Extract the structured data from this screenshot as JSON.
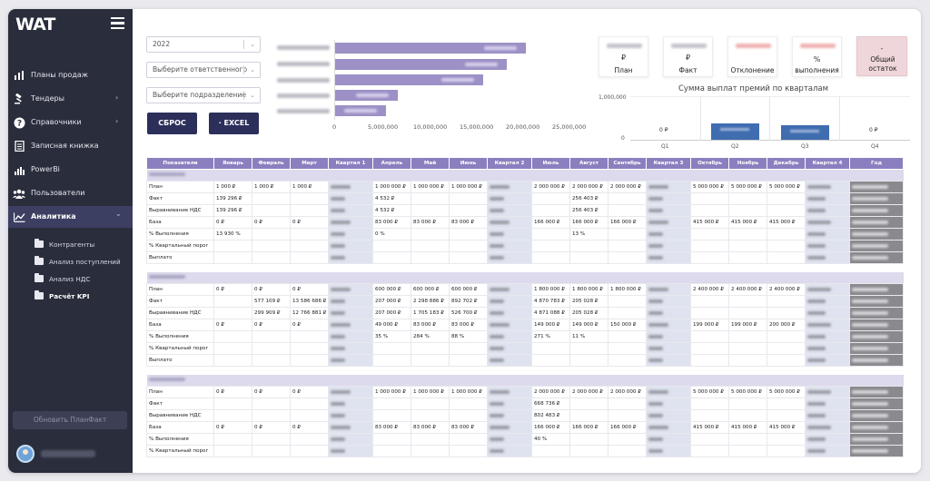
{
  "app": {
    "logo": "WAT"
  },
  "sidebar": {
    "items": [
      {
        "label": "Планы продаж",
        "icon": "chart-bars-icon",
        "chevron": ""
      },
      {
        "label": "Тендеры",
        "icon": "gavel-icon",
        "chevron": "›"
      },
      {
        "label": "Справочники",
        "icon": "help-circle-icon",
        "chevron": "›"
      },
      {
        "label": "Записная книжка",
        "icon": "notebook-icon",
        "chevron": ""
      },
      {
        "label": "PowerBi",
        "icon": "bar-chart-icon",
        "chevron": ""
      },
      {
        "label": "Пользователи",
        "icon": "users-icon",
        "chevron": ""
      },
      {
        "label": "Аналитика",
        "icon": "analytics-icon",
        "chevron": "⌄"
      }
    ],
    "subitems": [
      "Контрагенты",
      "Анализ поступлений",
      "Анализ НДС",
      "Расчёт KPI"
    ],
    "update_button": "Обновить ПланФакт"
  },
  "filters": {
    "year": "2022",
    "responsible": "Выберите ответственного",
    "department": "Выберите подразделение",
    "reset": "СБРОС",
    "excel": "EXCEL"
  },
  "bar_chart": {
    "x_ticks": [
      "0",
      "5,000,000",
      "10,000,000",
      "15,000,000",
      "20,000,000",
      "25,000,000"
    ]
  },
  "kpis": [
    {
      "currency": "₽",
      "label": "План",
      "tone": "neutral"
    },
    {
      "currency": "₽",
      "label": "Факт",
      "tone": "neutral"
    },
    {
      "currency": "",
      "label": "Отклонение",
      "tone": "red"
    },
    {
      "currency": "%",
      "label": "выполнения",
      "tone": "red"
    },
    {
      "currency": "-",
      "label": "Общий остаток",
      "tone": "pink"
    }
  ],
  "chart_data": {
    "type": "bar",
    "title": "Сумма выплат премий по кварталам",
    "categories": [
      "Q1",
      "Q2",
      "Q3",
      "Q4"
    ],
    "y_ticks": [
      "1,000,000",
      "0"
    ],
    "ylim": [
      0,
      1000000
    ],
    "values": [
      0,
      380000,
      340000,
      0
    ],
    "labels": [
      "0 ₽",
      "",
      "",
      "0 ₽"
    ],
    "bar_color": "#3f6db0"
  },
  "table": {
    "headers": [
      "Показатели",
      "Январь",
      "Февраль",
      "Март",
      "Квартал 1",
      "Апрель",
      "Май",
      "Июнь",
      "Квартал 2",
      "Июль",
      "Август",
      "Сентябрь",
      "Квартал 3",
      "Октябрь",
      "Ноябрь",
      "Декабрь",
      "Квартал 4",
      "Год"
    ],
    "sections": [
      {
        "rows": [
          [
            "План",
            "1 000 ₽",
            "1 000 ₽",
            "1 000 ₽",
            "#",
            "1 000 000 ₽",
            "1 000 000 ₽",
            "1 000 000 ₽",
            "#",
            "2 000 000 ₽",
            "2 000 000 ₽",
            "2 000 000 ₽",
            "#",
            "5 000 000 ₽",
            "5 000 000 ₽",
            "5 000 000 ₽",
            "#",
            "#"
          ],
          [
            "Факт",
            "139 296 ₽",
            "",
            "",
            "#",
            "4 532 ₽",
            "",
            "",
            "#",
            "",
            "256 403 ₽",
            "",
            "#",
            "",
            "",
            "",
            "#",
            "#"
          ],
          [
            "Выравнивание НДС",
            "139 296 ₽",
            "",
            "",
            "#",
            "4 532 ₽",
            "",
            "",
            "#",
            "",
            "256 403 ₽",
            "",
            "#",
            "",
            "",
            "",
            "#",
            "#"
          ],
          [
            "База",
            "0 ₽",
            "0 ₽",
            "0 ₽",
            "#",
            "83 000 ₽",
            "83 000 ₽",
            "83 000 ₽",
            "#",
            "166 000 ₽",
            "166 000 ₽",
            "166 000 ₽",
            "#",
            "415 000 ₽",
            "415 000 ₽",
            "415 000 ₽",
            "#",
            "#"
          ],
          [
            "% Выполнения",
            "13 930 %",
            "",
            "",
            "#",
            "0 %",
            "",
            "",
            "#",
            "",
            "13 %",
            "",
            "#",
            "",
            "",
            "",
            "#",
            "#"
          ],
          [
            "% Квартальный порог",
            "",
            "",
            "",
            "#",
            "",
            "",
            "",
            "#",
            "",
            "",
            "",
            "#",
            "",
            "",
            "",
            "#",
            "#"
          ],
          [
            "Выплато",
            "",
            "",
            "",
            "#",
            "",
            "",
            "",
            "#",
            "",
            "",
            "",
            "#",
            "",
            "",
            "",
            "#",
            "#"
          ]
        ]
      },
      {
        "rows": [
          [
            "План",
            "0 ₽",
            "0 ₽",
            "0 ₽",
            "#",
            "600 000 ₽",
            "600 000 ₽",
            "600 000 ₽",
            "#",
            "1 800 000 ₽",
            "1 800 000 ₽",
            "1 800 000 ₽",
            "#",
            "2 400 000 ₽",
            "2 400 000 ₽",
            "2 400 000 ₽",
            "#",
            "#"
          ],
          [
            "Факт",
            "",
            "577 109 ₽",
            "13 586 686 ₽",
            "#",
            "207 000 ₽",
            "2 298 886 ₽",
            "892 702 ₽",
            "#",
            "4 870 783 ₽",
            "205 028 ₽",
            "",
            "#",
            "",
            "",
            "",
            "#",
            "#"
          ],
          [
            "Выравнивание НДС",
            "",
            "299 909 ₽",
            "12 766 881 ₽",
            "#",
            "207 000 ₽",
            "1 705 183 ₽",
            "526 700 ₽",
            "#",
            "4 871 088 ₽",
            "205 028 ₽",
            "",
            "#",
            "",
            "",
            "",
            "#",
            "#"
          ],
          [
            "База",
            "0 ₽",
            "0 ₽",
            "0 ₽",
            "#",
            "49 000 ₽",
            "83 000 ₽",
            "83 000 ₽",
            "#",
            "149 000 ₽",
            "149 000 ₽",
            "150 000 ₽",
            "#",
            "199 000 ₽",
            "199 000 ₽",
            "200 000 ₽",
            "#",
            "#"
          ],
          [
            "% Выполнения",
            "",
            "",
            "",
            "#",
            "35 %",
            "284 %",
            "88 %",
            "#",
            "271 %",
            "11 %",
            "",
            "#",
            "",
            "",
            "",
            "#",
            "#"
          ],
          [
            "% Квартальный порог",
            "",
            "",
            "",
            "#",
            "",
            "",
            "",
            "#",
            "",
            "",
            "",
            "#",
            "",
            "",
            "",
            "#",
            "#"
          ],
          [
            "Выплато",
            "",
            "",
            "",
            "#",
            "",
            "",
            "",
            "#",
            "",
            "",
            "",
            "#",
            "",
            "",
            "",
            "#",
            "#"
          ]
        ]
      },
      {
        "rows": [
          [
            "План",
            "0 ₽",
            "0 ₽",
            "0 ₽",
            "#",
            "1 000 000 ₽",
            "1 000 000 ₽",
            "1 000 000 ₽",
            "#",
            "2 000 000 ₽",
            "2 000 000 ₽",
            "2 000 000 ₽",
            "#",
            "5 000 000 ₽",
            "5 000 000 ₽",
            "5 000 000 ₽",
            "#",
            "#"
          ],
          [
            "Факт",
            "",
            "",
            "",
            "#",
            "",
            "",
            "",
            "#",
            "668 736 ₽",
            "",
            "",
            "#",
            "",
            "",
            "",
            "#",
            "#"
          ],
          [
            "Выравнивание НДС",
            "",
            "",
            "",
            "#",
            "",
            "",
            "",
            "#",
            "802 483 ₽",
            "",
            "",
            "#",
            "",
            "",
            "",
            "#",
            "#"
          ],
          [
            "База",
            "0 ₽",
            "0 ₽",
            "0 ₽",
            "#",
            "83 000 ₽",
            "83 000 ₽",
            "83 000 ₽",
            "#",
            "166 000 ₽",
            "166 000 ₽",
            "166 000 ₽",
            "#",
            "415 000 ₽",
            "415 000 ₽",
            "415 000 ₽",
            "#",
            "#"
          ],
          [
            "% Выполнения",
            "",
            "",
            "",
            "#",
            "",
            "",
            "",
            "#",
            "40 %",
            "",
            "",
            "#",
            "",
            "",
            "",
            "#",
            "#"
          ],
          [
            "% Квартальный порог",
            "",
            "",
            "",
            "#",
            "",
            "",
            "",
            "#",
            "",
            "",
            "",
            "#",
            "",
            "",
            "",
            "#",
            "#"
          ]
        ]
      }
    ]
  }
}
